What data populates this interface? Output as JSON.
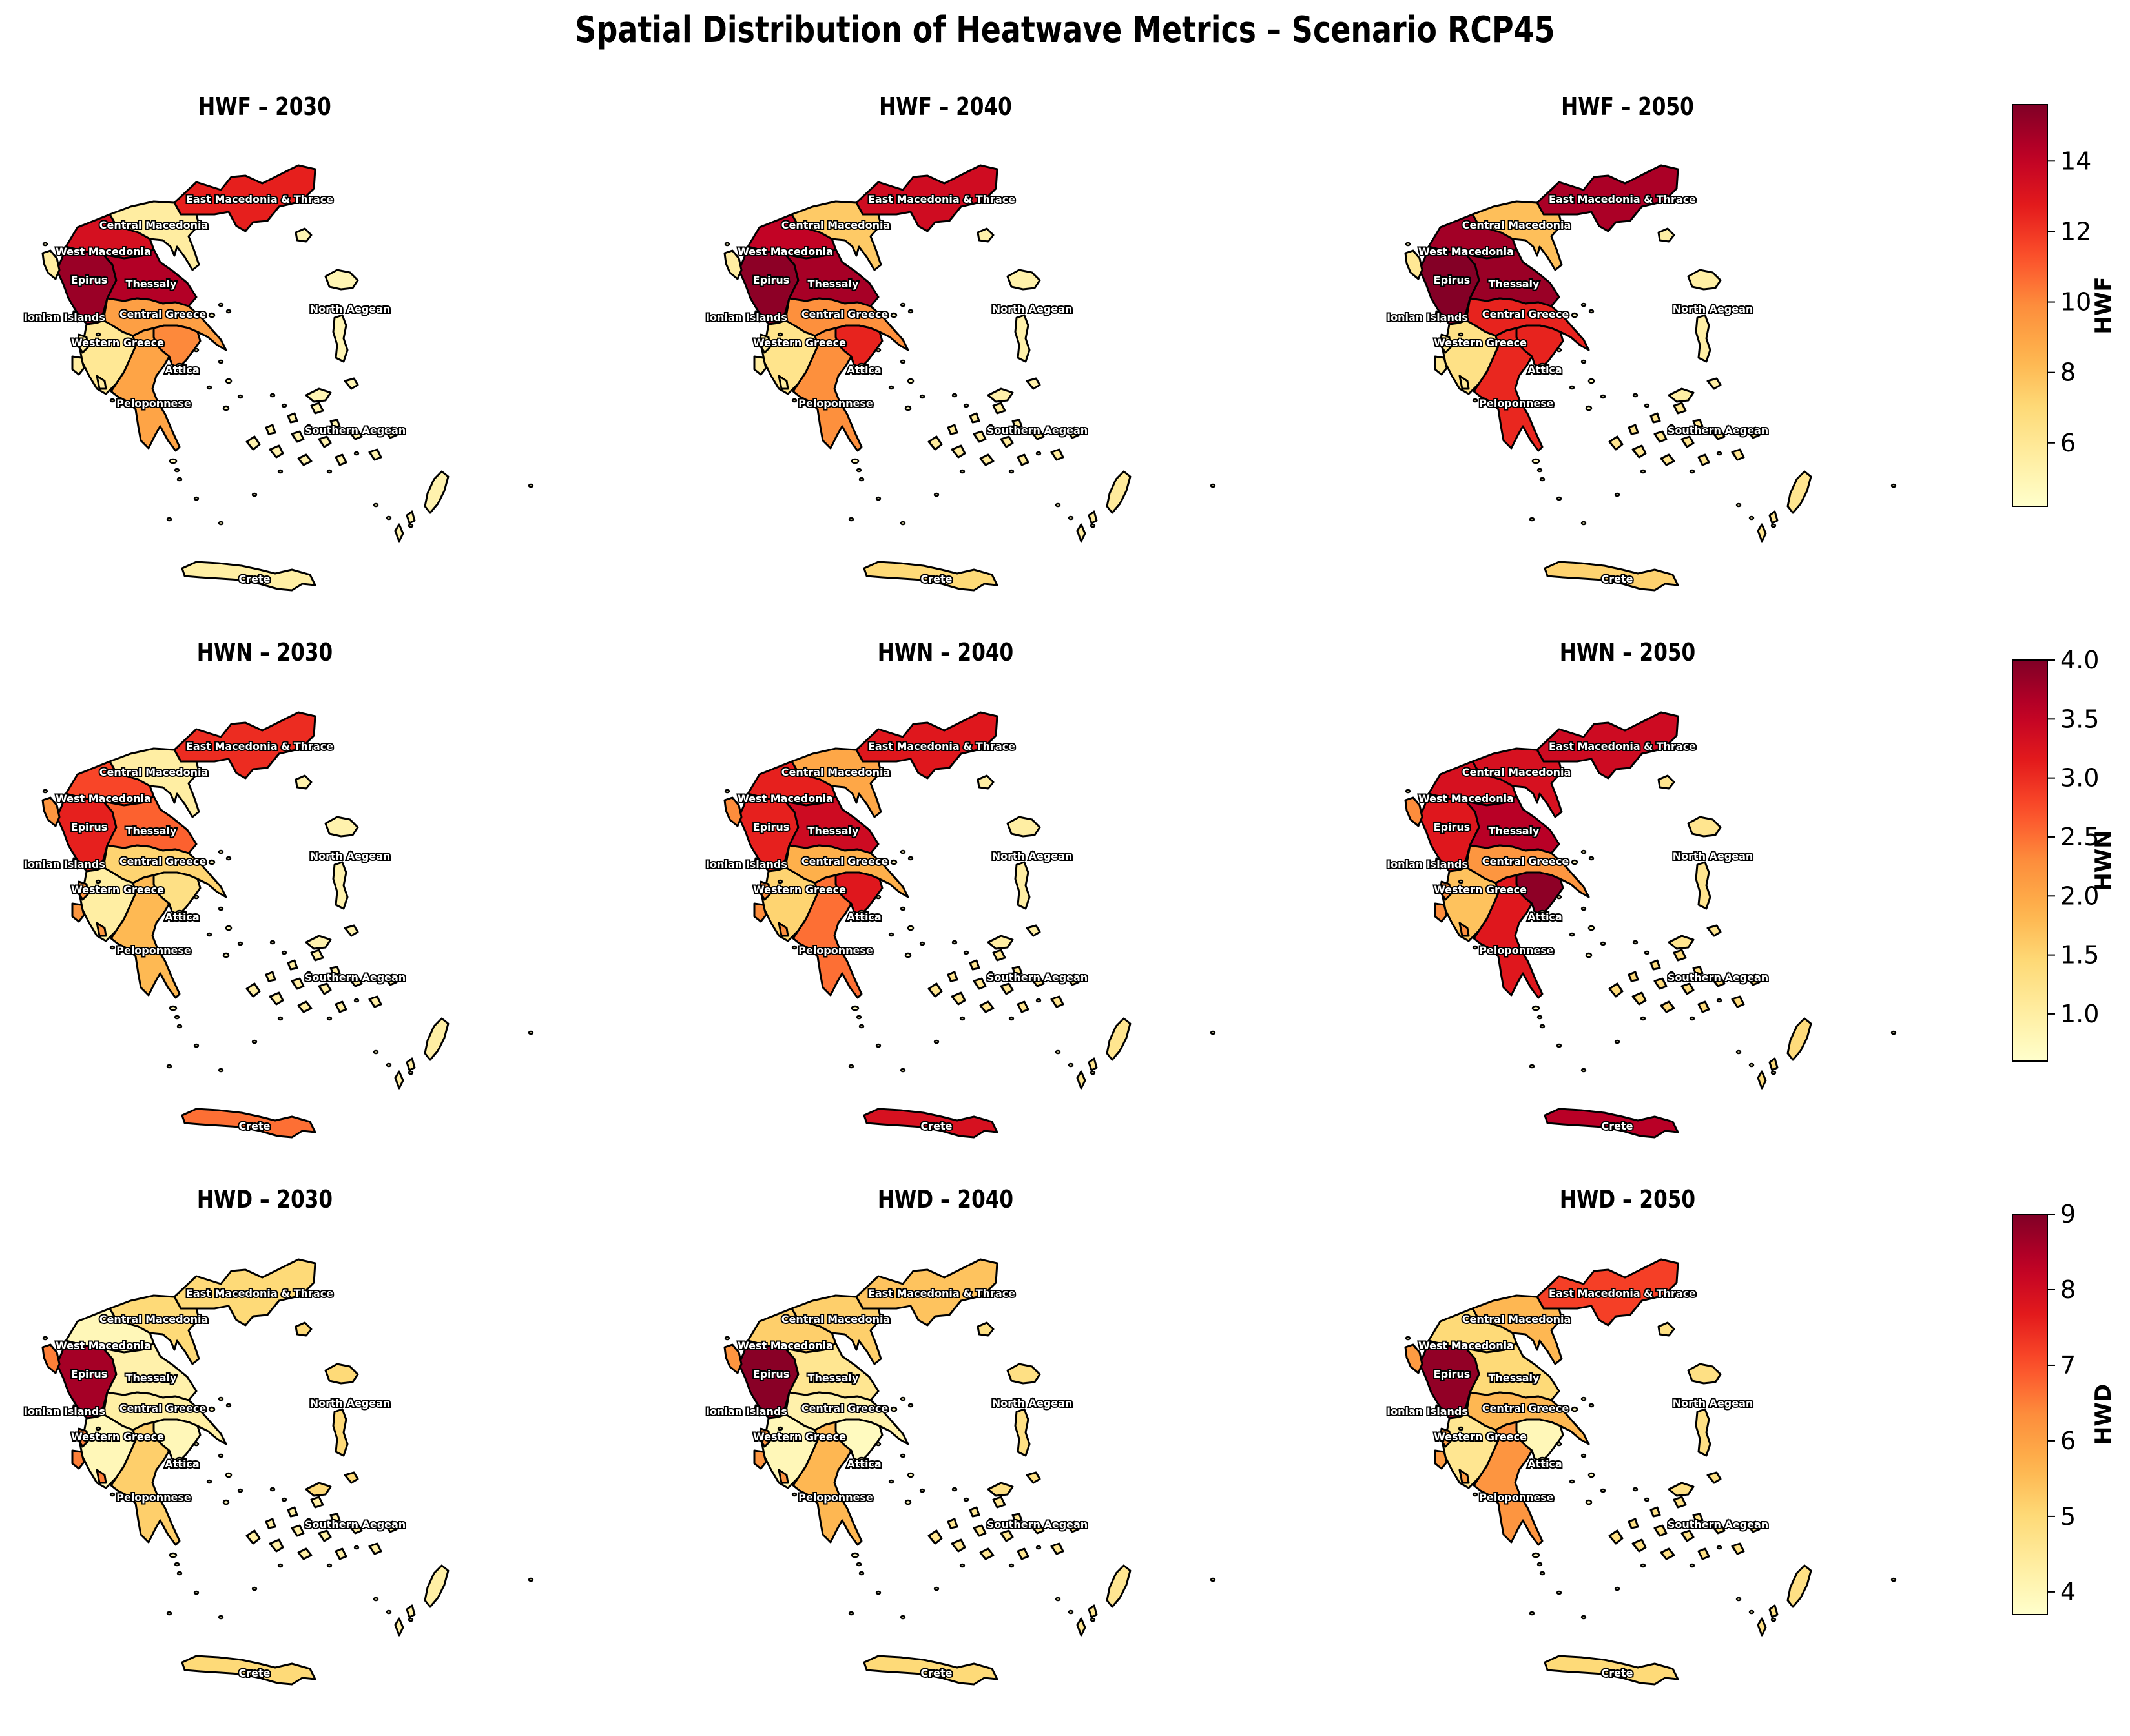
{
  "title": "Spatial Distribution of Heatwave Metrics – Scenario RCP45",
  "chart_data": {
    "type": "choropleth",
    "years": [
      "2030",
      "2040",
      "2050"
    ],
    "regions": [
      "East Macedonia & Thrace",
      "Central Macedonia",
      "West Macedonia",
      "Epirus",
      "Thessaly",
      "North Aegean",
      "Ionian Islands",
      "Central Greece",
      "Western Greece",
      "Attica",
      "Peloponnese",
      "Southern Aegean",
      "Crete"
    ],
    "colormap": "YlOrRd",
    "metrics": [
      {
        "name": "HWF",
        "colorbar_label": "HWF",
        "range": [
          4.2,
          15.6
        ],
        "ticks": [
          "6",
          "8",
          "10",
          "12",
          "14"
        ],
        "tick_values": [
          6,
          8,
          10,
          12,
          14
        ],
        "panels": [
          {
            "title": "HWF – 2030",
            "values": {
              "East Macedonia & Thrace": 12.6,
              "Central Macedonia": 5.6,
              "West Macedonia": 13.3,
              "Epirus": 15.0,
              "Thessaly": 14.4,
              "North Aegean": 5.0,
              "Ionian Islands": 5.6,
              "Central Greece": 9.2,
              "Western Greece": 6.0,
              "Attica": 10.0,
              "Peloponnese": 9.0,
              "Southern Aegean": 5.2,
              "Crete": 5.5
            }
          },
          {
            "title": "HWF – 2040",
            "values": {
              "East Macedonia & Thrace": 13.5,
              "Central Macedonia": 7.6,
              "West Macedonia": 14.0,
              "Epirus": 15.3,
              "Thessaly": 14.7,
              "North Aegean": 5.3,
              "Ionian Islands": 5.6,
              "Central Greece": 9.8,
              "Western Greece": 6.3,
              "Attica": 12.5,
              "Peloponnese": 9.8,
              "Southern Aegean": 5.8,
              "Crete": 7.0
            }
          },
          {
            "title": "HWF – 2050",
            "values": {
              "East Macedonia & Thrace": 14.6,
              "Central Macedonia": 8.0,
              "West Macedonia": 14.8,
              "Epirus": 15.5,
              "Thessaly": 15.0,
              "North Aegean": 5.5,
              "Ionian Islands": 6.0,
              "Central Greece": 12.5,
              "Western Greece": 6.5,
              "Attica": 12.5,
              "Peloponnese": 12.4,
              "Southern Aegean": 6.2,
              "Crete": 7.3
            }
          }
        ]
      },
      {
        "name": "HWN",
        "colorbar_label": "HWN",
        "range": [
          0.6,
          4.0
        ],
        "ticks": [
          "1.0",
          "1.5",
          "2.0",
          "2.5",
          "3.0",
          "3.5",
          "4.0"
        ],
        "tick_values": [
          1.0,
          1.5,
          2.0,
          2.5,
          3.0,
          3.5,
          4.0
        ],
        "panels": [
          {
            "title": "HWN – 2030",
            "values": {
              "East Macedonia & Thrace": 3.0,
              "Central Macedonia": 1.0,
              "West Macedonia": 2.8,
              "Epirus": 3.1,
              "Thessaly": 2.6,
              "North Aegean": 0.9,
              "Ionian Islands": 2.2,
              "Central Greece": 1.5,
              "Western Greece": 1.0,
              "Attica": 1.3,
              "Peloponnese": 1.8,
              "Southern Aegean": 1.0,
              "Crete": 2.5
            }
          },
          {
            "title": "HWN – 2040",
            "values": {
              "East Macedonia & Thrace": 3.2,
              "Central Macedonia": 2.0,
              "West Macedonia": 3.1,
              "Epirus": 3.1,
              "Thessaly": 3.4,
              "North Aegean": 1.0,
              "Ionian Islands": 2.3,
              "Central Greece": 1.9,
              "Western Greece": 1.5,
              "Attica": 3.2,
              "Peloponnese": 2.5,
              "Southern Aegean": 1.2,
              "Crete": 3.3
            }
          },
          {
            "title": "HWN – 2050",
            "values": {
              "East Macedonia & Thrace": 3.4,
              "Central Macedonia": 3.3,
              "West Macedonia": 3.3,
              "Epirus": 3.2,
              "Thessaly": 3.6,
              "North Aegean": 1.2,
              "Ionian Islands": 2.3,
              "Central Greece": 2.2,
              "Western Greece": 1.7,
              "Attica": 3.9,
              "Peloponnese": 3.2,
              "Southern Aegean": 1.4,
              "Crete": 3.6
            }
          }
        ]
      },
      {
        "name": "HWD",
        "colorbar_label": "HWD",
        "range": [
          3.7,
          9.0
        ],
        "ticks": [
          "4",
          "5",
          "6",
          "7",
          "8",
          "9"
        ],
        "tick_values": [
          4,
          5,
          6,
          7,
          8,
          9
        ],
        "panels": [
          {
            "title": "HWD – 2030",
            "values": {
              "East Macedonia & Thrace": 5.0,
              "Central Macedonia": 5.0,
              "West Macedonia": 4.0,
              "Epirus": 8.6,
              "Thessaly": 4.2,
              "North Aegean": 5.0,
              "Ionian Islands": 6.5,
              "Central Greece": 4.3,
              "Western Greece": 4.0,
              "Attica": 4.0,
              "Peloponnese": 5.2,
              "Southern Aegean": 4.3,
              "Crete": 5.0
            }
          },
          {
            "title": "HWD – 2040",
            "values": {
              "East Macedonia & Thrace": 5.4,
              "Central Macedonia": 5.2,
              "West Macedonia": 5.2,
              "Epirus": 8.9,
              "Thessaly": 4.6,
              "North Aegean": 4.8,
              "Ionian Islands": 6.2,
              "Central Greece": 4.2,
              "Western Greece": 4.0,
              "Attica": 3.9,
              "Peloponnese": 5.6,
              "Southern Aegean": 4.6,
              "Crete": 5.0
            }
          },
          {
            "title": "HWD – 2050",
            "values": {
              "East Macedonia & Thrace": 7.2,
              "Central Macedonia": 5.6,
              "West Macedonia": 5.0,
              "Epirus": 8.8,
              "Thessaly": 5.0,
              "North Aegean": 4.8,
              "Ionian Islands": 6.1,
              "Central Greece": 5.6,
              "Western Greece": 4.6,
              "Attica": 4.0,
              "Peloponnese": 6.2,
              "Southern Aegean": 4.8,
              "Crete": 5.0
            }
          }
        ]
      }
    ]
  }
}
